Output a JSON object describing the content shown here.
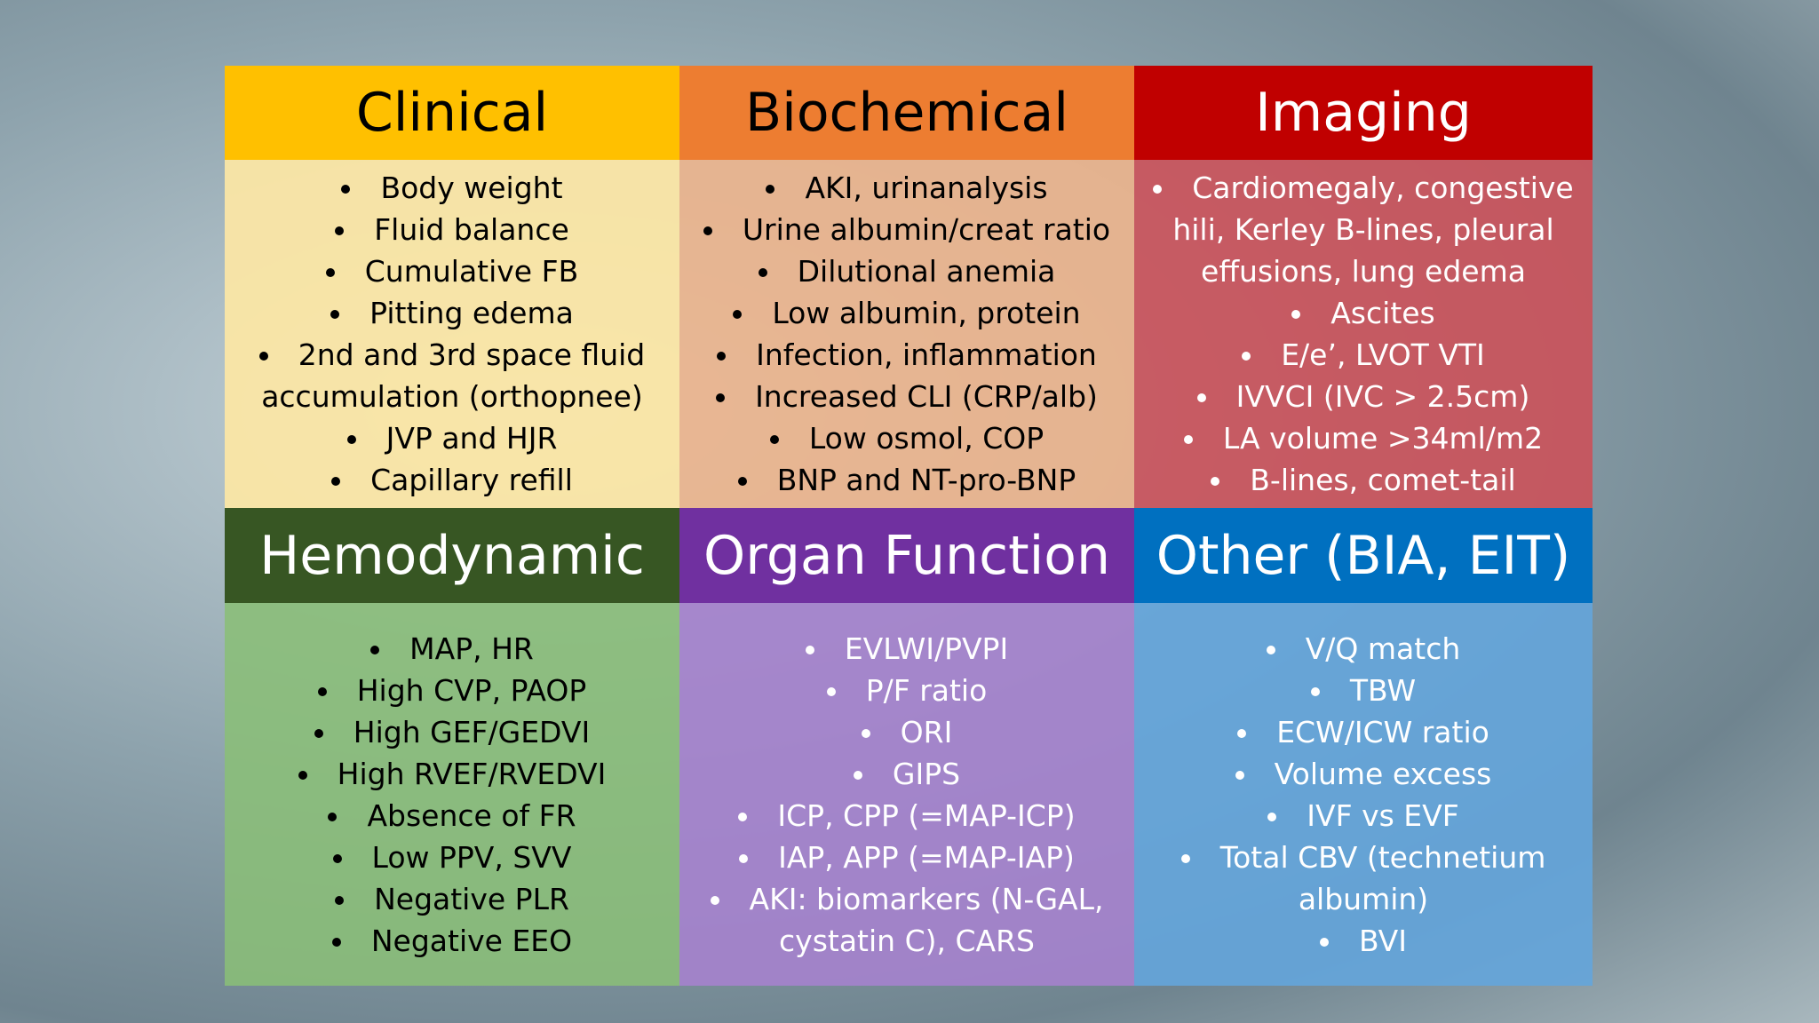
{
  "cells": [
    {
      "title": "Clinical",
      "items": [
        "Body weight",
        "Fluid balance",
        "Cumulative FB",
        "Pitting edema",
        "2nd and 3rd space fluid accumulation (orthopnee)",
        "JVP and HJR",
        "Capillary refill"
      ]
    },
    {
      "title": "Biochemical",
      "items": [
        "AKI, urinanalysis",
        "Urine albumin/creat ratio",
        "Dilutional anemia",
        "Low albumin, protein",
        "Infection, inflammation",
        "Increased CLI (CRP/alb)",
        "Low osmol, COP",
        "BNP and NT-pro-BNP"
      ]
    },
    {
      "title": "Imaging",
      "items": [
        "Cardiomegaly, congestive hili, Kerley B-lines, pleural effusions, lung edema",
        "Ascites",
        "E/e’, LVOT VTI",
        "IVVCI (IVC > 2.5cm)",
        "LA volume >34ml/m2",
        "B-lines, comet-tail"
      ]
    },
    {
      "title": "Hemodynamic",
      "items": [
        "MAP, HR",
        "High CVP, PAOP",
        "High GEF/GEDVI",
        "High RVEF/RVEDVI",
        "Absence of FR",
        "Low PPV, SVV",
        "Negative PLR",
        "Negative EEO"
      ]
    },
    {
      "title": "Organ Function",
      "items": [
        "EVLWI/PVPI",
        "P/F ratio",
        "ORI",
        "GIPS",
        "ICP, CPP (=MAP-ICP)",
        "IAP, APP (=MAP-IAP)",
        "AKI: biomarkers (N-GAL, cystatin C), CARS"
      ]
    },
    {
      "title": "Other (BIA, EIT)",
      "items": [
        "V/Q match",
        "TBW",
        "ECW/ICW ratio",
        "Volume excess",
        "IVF vs EVF",
        "Total CBV (technetium albumin)",
        "BVI"
      ]
    }
  ]
}
